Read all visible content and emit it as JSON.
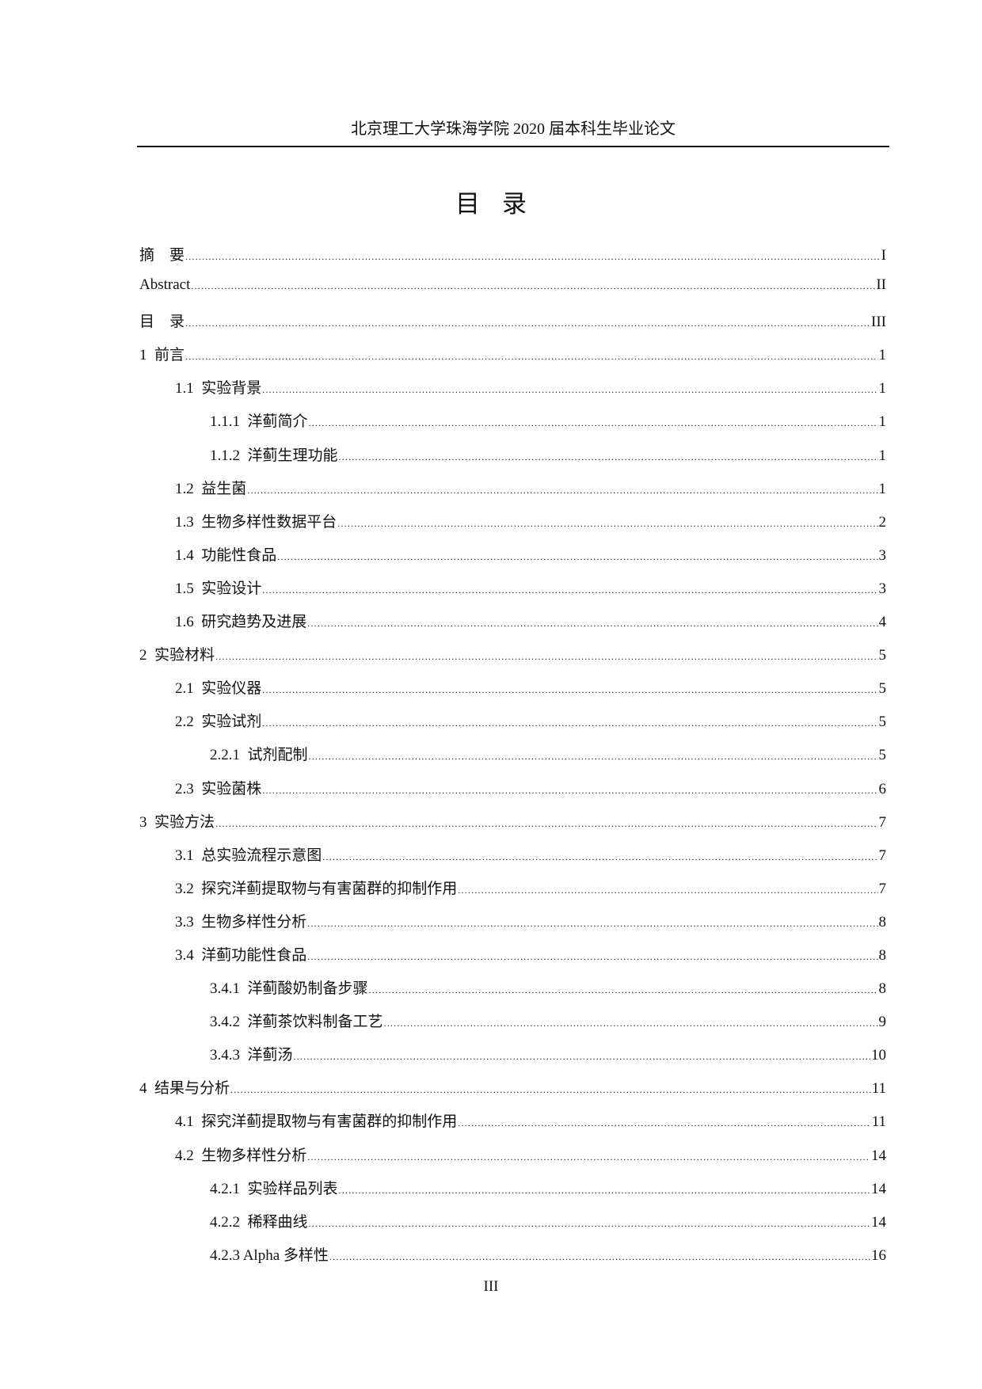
{
  "header": {
    "text": "北京理工大学珠海学院 2020 届本科生毕业论文"
  },
  "title": "目录",
  "toc": [
    {
      "level": 1,
      "label": "摘    要",
      "page": "I"
    },
    {
      "level": 1,
      "label": "Abstract",
      "page": "II"
    },
    {
      "level": 1,
      "label": "目    录",
      "page": "III"
    },
    {
      "level": 1,
      "label": "1  前言",
      "page": "1"
    },
    {
      "level": 2,
      "label": "1.1  实验背景",
      "page": "1"
    },
    {
      "level": 3,
      "label": "1.1.1  洋蓟简介",
      "page": "1"
    },
    {
      "level": 3,
      "label": "1.1.2  洋蓟生理功能",
      "page": "1"
    },
    {
      "level": 2,
      "label": "1.2  益生菌",
      "page": "1"
    },
    {
      "level": 2,
      "label": "1.3  生物多样性数据平台",
      "page": "2"
    },
    {
      "level": 2,
      "label": "1.4  功能性食品",
      "page": "3"
    },
    {
      "level": 2,
      "label": "1.5  实验设计",
      "page": "3"
    },
    {
      "level": 2,
      "label": "1.6  研究趋势及进展",
      "page": "4"
    },
    {
      "level": 1,
      "label": "2  实验材料",
      "page": "5"
    },
    {
      "level": 2,
      "label": "2.1  实验仪器",
      "page": "5"
    },
    {
      "level": 2,
      "label": "2.2  实验试剂",
      "page": "5"
    },
    {
      "level": 3,
      "label": "2.2.1  试剂配制",
      "page": "5"
    },
    {
      "level": 2,
      "label": "2.3  实验菌株",
      "page": "6"
    },
    {
      "level": 1,
      "label": "3  实验方法",
      "page": "7"
    },
    {
      "level": 2,
      "label": "3.1  总实验流程示意图",
      "page": "7"
    },
    {
      "level": 2,
      "label": "3.2  探究洋蓟提取物与有害菌群的抑制作用",
      "page": "7"
    },
    {
      "level": 2,
      "label": "3.3  生物多样性分析",
      "page": "8"
    },
    {
      "level": 2,
      "label": "3.4  洋蓟功能性食品",
      "page": "8"
    },
    {
      "level": 3,
      "label": "3.4.1  洋蓟酸奶制备步骤",
      "page": "8"
    },
    {
      "level": 3,
      "label": "3.4.2  洋蓟茶饮料制备工艺",
      "page": "9"
    },
    {
      "level": 3,
      "label": "3.4.3  洋蓟汤",
      "page": "10"
    },
    {
      "level": 1,
      "label": "4  结果与分析",
      "page": "11"
    },
    {
      "level": 2,
      "label": "4.1  探究洋蓟提取物与有害菌群的抑制作用",
      "page": "11"
    },
    {
      "level": 2,
      "label": "4.2  生物多样性分析",
      "page": "14"
    },
    {
      "level": 3,
      "label": "4.2.1  实验样品列表",
      "page": "14"
    },
    {
      "level": 3,
      "label": "4.2.2  稀释曲线",
      "page": "14"
    },
    {
      "level": 3,
      "label": "4.2.3 Alpha 多样性",
      "page": "16"
    }
  ],
  "footer": {
    "page_number": "III"
  }
}
